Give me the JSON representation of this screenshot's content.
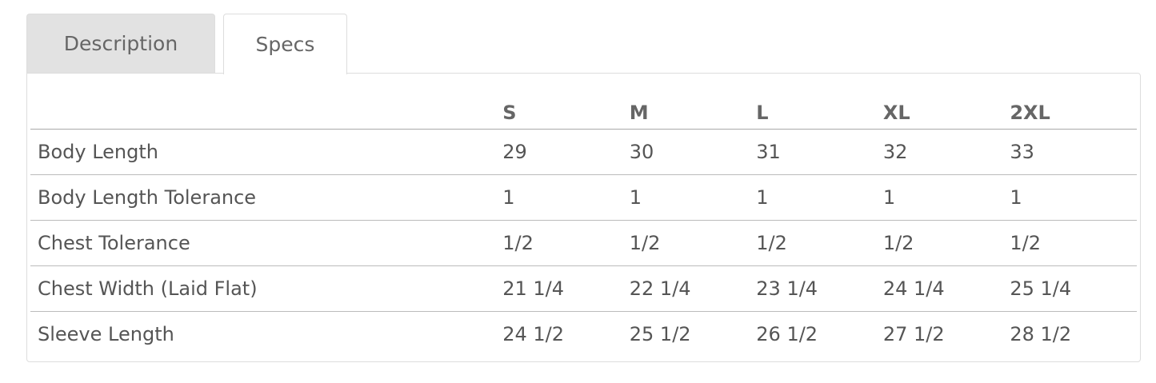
{
  "tabs": [
    {
      "label": "Description",
      "active": false
    },
    {
      "label": "Specs",
      "active": true
    }
  ],
  "table": {
    "headers": [
      "",
      "S",
      "M",
      "L",
      "XL",
      "2XL"
    ],
    "rows": [
      [
        "Body Length",
        "29",
        "30",
        "31",
        "32",
        "33"
      ],
      [
        "Body Length Tolerance",
        "1",
        "1",
        "1",
        "1",
        "1"
      ],
      [
        "Chest Tolerance",
        "1/2",
        "1/2",
        "1/2",
        "1/2",
        "1/2"
      ],
      [
        "Chest Width (Laid Flat)",
        "21 1/4",
        "22 1/4",
        "23 1/4",
        "24 1/4",
        "25 1/4"
      ],
      [
        "Sleeve Length",
        "24 1/2",
        "25 1/2",
        "26 1/2",
        "27 1/2",
        "28 1/2"
      ]
    ]
  }
}
